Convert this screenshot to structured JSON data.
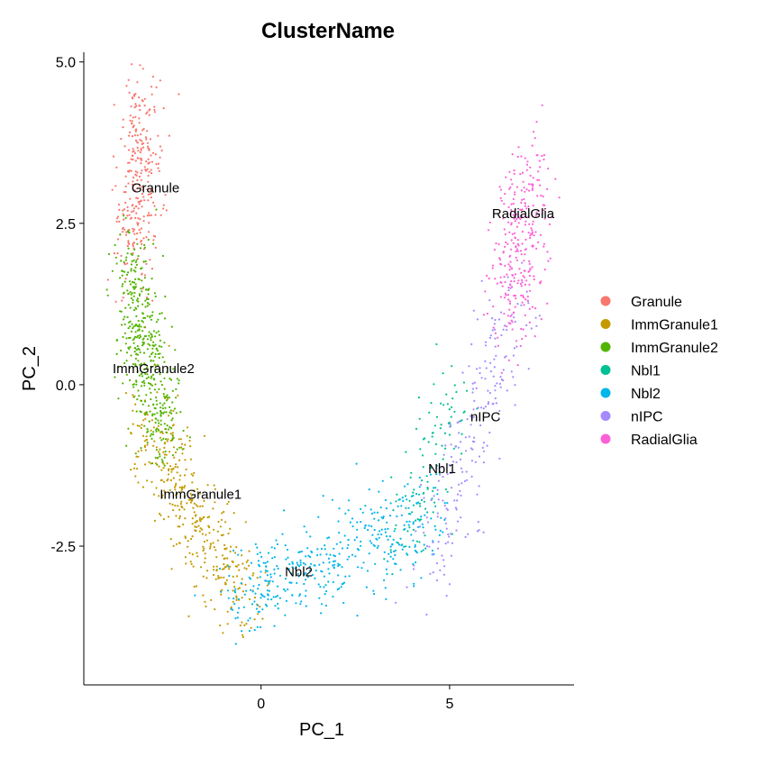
{
  "chart_data": {
    "type": "scatter",
    "title": "ClusterName",
    "xlabel": "PC_1",
    "ylabel": "PC_2",
    "xlim": [
      -4.7,
      8.3
    ],
    "ylim": [
      -4.65,
      5.15
    ],
    "xticks": [
      0,
      5
    ],
    "xtick_labels": [
      "0",
      "5"
    ],
    "yticks": [
      -2.5,
      0.0,
      2.5,
      5.0
    ],
    "ytick_labels": [
      "-2.5",
      "0.0",
      "2.5",
      "5.0"
    ],
    "grid": false,
    "legend_position": "right",
    "series": [
      {
        "name": "Granule",
        "color": "#F8766D",
        "n_points": 300,
        "centroid": [
          -3.2,
          3.2
        ],
        "label": "Granule",
        "path": [
          [
            -3.4,
            2.0
          ],
          [
            -3.1,
            4.5
          ]
        ],
        "spread": [
          0.3,
          0.5
        ]
      },
      {
        "name": "ImmGranule1",
        "color": "#C49A00",
        "n_points": 400,
        "centroid": [
          -1.9,
          -1.5
        ],
        "label": "ImmGranule1",
        "path": [
          [
            -3.0,
            -0.6
          ],
          [
            -0.4,
            -3.5
          ]
        ],
        "spread": [
          0.35,
          0.35
        ]
      },
      {
        "name": "ImmGranule2",
        "color": "#53B400",
        "n_points": 450,
        "centroid": [
          -3.1,
          0.5
        ],
        "label": "ImmGranule2",
        "path": [
          [
            -3.5,
            1.9
          ],
          [
            -2.6,
            -0.9
          ]
        ],
        "spread": [
          0.3,
          0.4
        ]
      },
      {
        "name": "Nbl1",
        "color": "#00C094",
        "n_points": 120,
        "centroid": [
          4.6,
          -1.5
        ],
        "label": "Nbl1",
        "path": [
          [
            3.8,
            -2.3
          ],
          [
            5.2,
            -0.3
          ]
        ],
        "spread": [
          0.35,
          0.4
        ]
      },
      {
        "name": "Nbl2",
        "color": "#00B6EB",
        "n_points": 420,
        "centroid": [
          1.6,
          -2.9
        ],
        "label": "Nbl2",
        "path": [
          [
            -0.6,
            -3.3
          ],
          [
            4.5,
            -2.0
          ]
        ],
        "spread": [
          0.45,
          0.35
        ]
      },
      {
        "name": "nIPC",
        "color": "#A58AFF",
        "n_points": 220,
        "centroid": [
          5.7,
          -0.7
        ],
        "label": "nIPC",
        "path": [
          [
            4.4,
            -2.9
          ],
          [
            6.7,
            1.2
          ]
        ],
        "spread": [
          0.35,
          0.45
        ]
      },
      {
        "name": "RadialGlia",
        "color": "#FB61D7",
        "n_points": 300,
        "centroid": [
          7.0,
          2.5
        ],
        "label": "RadialGlia",
        "path": [
          [
            6.6,
            1.0
          ],
          [
            7.1,
            3.4
          ]
        ],
        "spread": [
          0.35,
          0.45
        ]
      }
    ],
    "cluster_labels": [
      {
        "text": "Granule",
        "x": -2.8,
        "y": 3.05
      },
      {
        "text": "ImmGranule2",
        "x": -2.85,
        "y": 0.25
      },
      {
        "text": "ImmGranule1",
        "x": -1.6,
        "y": -1.7
      },
      {
        "text": "Nbl2",
        "x": 1.0,
        "y": -2.9
      },
      {
        "text": "Nbl1",
        "x": 4.8,
        "y": -1.3
      },
      {
        "text": "nIPC",
        "x": 5.95,
        "y": -0.5
      },
      {
        "text": "RadialGlia",
        "x": 6.95,
        "y": 2.65
      }
    ]
  }
}
